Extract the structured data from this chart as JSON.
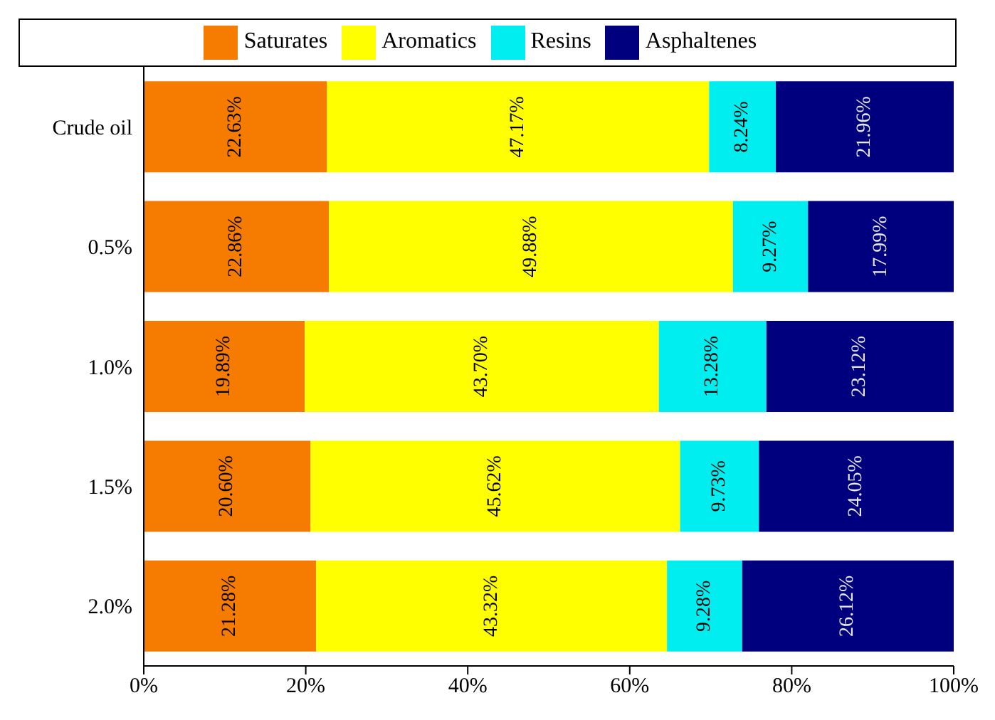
{
  "chart_data": {
    "type": "bar",
    "orientation": "horizontal",
    "stacked": true,
    "legend": "top",
    "categories": [
      "Crude oil",
      "0.5%",
      "1.0%",
      "1.5%",
      "2.0%"
    ],
    "series": [
      {
        "name": "Saturates",
        "color": "#f57c00",
        "values": [
          22.63,
          22.86,
          19.89,
          20.6,
          21.28
        ],
        "value_labels": [
          "22.63%",
          "22.86%",
          "19.89%",
          "20.60%",
          "21.28%"
        ]
      },
      {
        "name": "Aromatics",
        "color": "#ffff00",
        "values": [
          47.17,
          49.88,
          43.7,
          45.62,
          43.32
        ],
        "value_labels": [
          "47.17%",
          "49.88%",
          "43.70%",
          "45.62%",
          "43.32%"
        ]
      },
      {
        "name": "Resins",
        "color": "#00eef0",
        "values": [
          8.24,
          9.27,
          13.28,
          9.73,
          9.28
        ],
        "value_labels": [
          "8.24%",
          "9.27%",
          "13.28%",
          "9.73%",
          "9.28%"
        ]
      },
      {
        "name": "Asphaltenes",
        "color": "#00007f",
        "values": [
          21.96,
          17.99,
          23.12,
          24.05,
          26.12
        ],
        "value_labels": [
          "21.96%",
          "17.99%",
          "23.12%",
          "24.05%",
          "26.12%"
        ]
      }
    ],
    "xlim": [
      0,
      100
    ],
    "xticks": [
      {
        "value": 0,
        "label": "0%"
      },
      {
        "value": 20,
        "label": "20%"
      },
      {
        "value": 40,
        "label": "40%"
      },
      {
        "value": 60,
        "label": "60%"
      },
      {
        "value": 80,
        "label": "80%"
      },
      {
        "value": 100,
        "label": "100%"
      }
    ]
  }
}
